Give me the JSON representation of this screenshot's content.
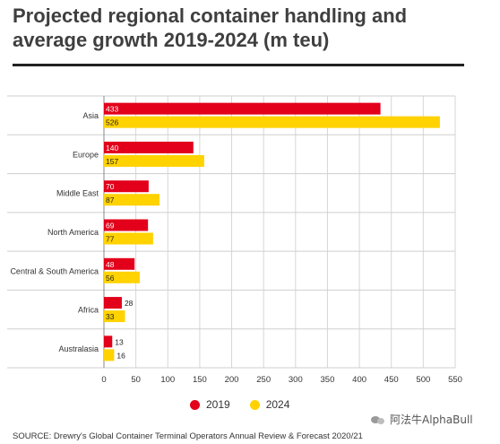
{
  "chart_data": {
    "type": "bar",
    "orientation": "horizontal",
    "title": "Projected regional container handling and average growth 2019-2024 (m teu)",
    "categories": [
      "Asia",
      "Europe",
      "Middle East",
      "North America",
      "Central & South America",
      "Africa",
      "Australasia"
    ],
    "series": [
      {
        "name": "2019",
        "color": "#e3001b",
        "values": [
          433,
          140,
          70,
          69,
          48,
          28,
          13
        ]
      },
      {
        "name": "2024",
        "color": "#ffd200",
        "values": [
          526,
          157,
          87,
          77,
          56,
          33,
          16
        ]
      }
    ],
    "xticks": [
      0,
      50,
      100,
      150,
      200,
      250,
      300,
      350,
      400,
      450,
      500,
      550
    ],
    "xlim": [
      0,
      550
    ],
    "grid": "vertical",
    "legend": "bottom"
  },
  "source": "SOURCE: Drewry's Global Container Terminal Operators Annual Review & Forecast 2020/21",
  "watermark": "阿法牛AlphaBull"
}
